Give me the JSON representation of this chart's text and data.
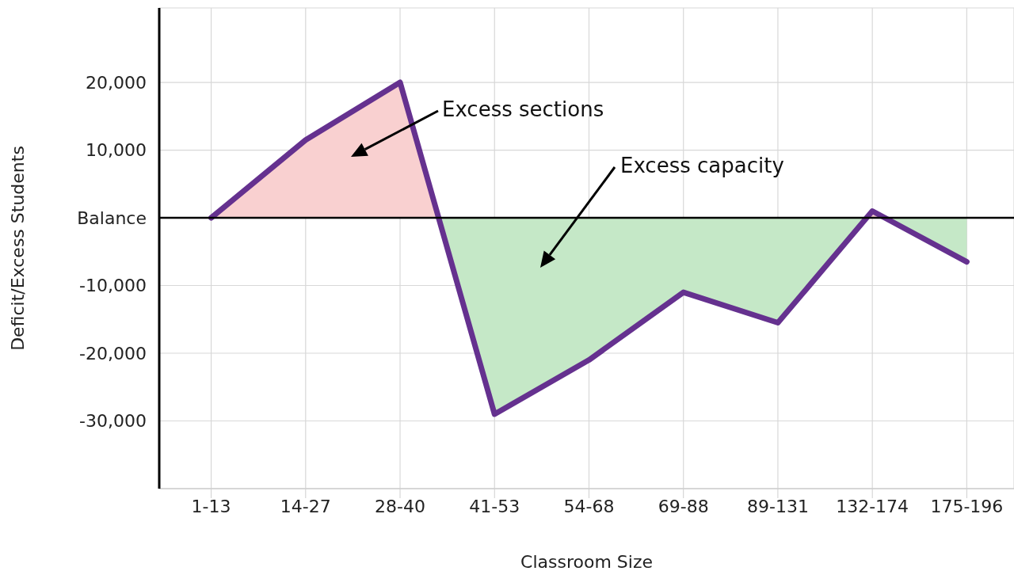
{
  "chart_data": {
    "type": "area",
    "xlabel": "Classroom Size",
    "ylabel": "Deficit/Excess Students",
    "categories": [
      "1-13",
      "14-27",
      "28-40",
      "41-53",
      "54-68",
      "69-88",
      "89-131",
      "132-174",
      "175-196"
    ],
    "series": [
      {
        "color": "#65318f",
        "colors": [
          "#f9d0d0",
          "#f9d0d0",
          "#f9d0d0",
          "#c5e8c7",
          "#c5e8c7",
          "#c5e8c7",
          "#c5e8c7",
          "#f9d0d0",
          "#c5e8c7"
        ],
        "values": [
          0,
          11500,
          20000,
          -29000,
          -21000,
          -11000,
          -15500,
          1000,
          -6500
        ]
      }
    ],
    "ylim": [
      -40000,
      31000
    ],
    "yticks": [
      {
        "value": 20000,
        "label": "20,000"
      },
      {
        "value": 10000,
        "label": "10,000"
      },
      {
        "value": 0,
        "label": "Balance"
      },
      {
        "value": -10000,
        "label": "-10,000"
      },
      {
        "value": -20000,
        "label": "-20,000"
      },
      {
        "value": -30000,
        "label": "-30,000"
      }
    ],
    "grid": true,
    "ref_lines": [
      {
        "axis": "y",
        "value": 0,
        "color": "#000000"
      }
    ],
    "annotations": [
      "Excess sections",
      "Excess capacity"
    ]
  }
}
